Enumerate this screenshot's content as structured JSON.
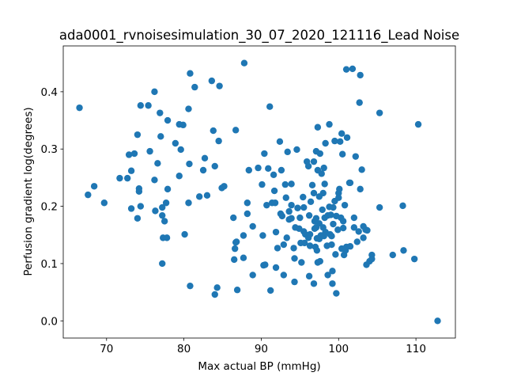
{
  "chart_data": {
    "type": "scatter",
    "title": "ada0001_rvnoisesimulation_30_07_2020_121116_Lead Noise",
    "x_label": "Max actual BP (mmHg)",
    "y_label": "Perfusion gradient log(degrees)",
    "color": "#1f77b4",
    "xlim": [
      64.4,
      115.1
    ],
    "ylim": [
      -0.03,
      0.48
    ],
    "xticks": [
      70,
      80,
      90,
      100,
      110
    ],
    "yticks": [
      {
        "value": 0,
        "label": "0.0"
      },
      0.1,
      0.2,
      0.3,
      0.4
    ],
    "x": [
      66.5,
      67.6,
      68.4,
      69.7,
      71.7,
      72.7,
      72.9,
      73.6,
      73.2,
      73.2,
      74.0,
      74.4,
      74.2,
      74.2,
      74.4,
      74.0,
      75.4,
      75.6,
      76.2,
      76.2,
      76.3,
      76.6,
      76.9,
      77.0,
      77.2,
      77.2,
      77.3,
      77.2,
      77.5,
      77.7,
      77.9,
      77.8,
      77.9,
      78.9,
      79.4,
      79.6,
      79.4,
      79.9,
      80.1,
      80.6,
      80.7,
      80.6,
      80.8,
      81.4,
      80.8,
      82.0,
      82.5,
      82.7,
      83.0,
      83.6,
      83.8,
      84.0,
      84.6,
      84.5,
      84.9,
      85.2,
      84.3,
      84.0,
      86.4,
      86.6,
      86.7,
      86.5,
      86.8,
      86.7,
      86.9,
      87.8,
      87.7,
      87.7,
      88.2,
      88.4,
      88.2,
      88.9,
      88.9,
      89.6,
      90.4,
      90.1,
      90.2,
      90.3,
      90.5,
      90.7,
      90.9,
      91.1,
      91.2,
      91.4,
      91.6,
      91.7,
      91.8,
      91.9,
      91.9,
      92.1,
      92.4,
      92.6,
      92.5,
      92.7,
      92.9,
      92.9,
      93.1,
      93.2,
      93.3,
      93.4,
      93.6,
      93.6,
      93.9,
      93.9,
      93.9,
      94.2,
      94.3,
      94.4,
      94.3,
      94.6,
      94.7,
      94.9,
      95.0,
      95.1,
      95.2,
      95.4,
      95.5,
      95.5,
      95.6,
      95.7,
      95.9,
      96.1,
      96.1,
      96.2,
      96.2,
      96.3,
      96.4,
      96.3,
      96.6,
      96.8,
      96.8,
      96.9,
      96.9,
      96.8,
      97.0,
      97.1,
      97.1,
      97.1,
      97.2,
      97.2,
      97.3,
      97.3,
      97.3,
      97.5,
      97.5,
      97.5,
      97.6,
      97.6,
      97.7,
      97.8,
      97.9,
      98.0,
      98.0,
      98.1,
      98.1,
      98.2,
      98.2,
      98.3,
      98.3,
      98.5,
      98.6,
      98.6,
      98.8,
      98.8,
      98.9,
      99.0,
      99.1,
      99.1,
      99.2,
      99.2,
      99.3,
      99.3,
      99.5,
      99.5,
      99.6,
      99.7,
      99.7,
      99.9,
      100.0,
      100.0,
      100.1,
      100.2,
      100.3,
      100.4,
      100.4,
      100.5,
      100.6,
      100.6,
      100.7,
      100.8,
      100.9,
      101.0,
      101.0,
      101.1,
      101.4,
      101.5,
      101.5,
      101.8,
      102.0,
      102.0,
      102.2,
      102.4,
      102.6,
      102.7,
      102.8,
      102.8,
      103.0,
      103.2,
      103.2,
      103.5,
      103.6,
      103.7,
      104.0,
      104.3,
      104.3,
      105.3,
      105.3,
      107.0,
      108.3,
      108.4,
      109.8,
      110.3,
      112.8
    ],
    "y": [
      0.372,
      0.22,
      0.235,
      0.206,
      0.249,
      0.249,
      0.29,
      0.292,
      0.262,
      0.196,
      0.325,
      0.376,
      0.231,
      0.226,
      0.2,
      0.179,
      0.376,
      0.296,
      0.4,
      0.246,
      0.192,
      0.275,
      0.363,
      0.322,
      0.198,
      0.184,
      0.145,
      0.1,
      0.174,
      0.206,
      0.23,
      0.145,
      0.35,
      0.31,
      0.343,
      0.299,
      0.253,
      0.342,
      0.151,
      0.37,
      0.274,
      0.206,
      0.432,
      0.408,
      0.061,
      0.217,
      0.263,
      0.284,
      0.219,
      0.419,
      0.332,
      0.27,
      0.41,
      0.314,
      0.232,
      0.235,
      0.058,
      0.046,
      0.18,
      0.126,
      0.137,
      0.107,
      0.138,
      0.333,
      0.054,
      0.45,
      0.11,
      0.149,
      0.206,
      0.263,
      0.187,
      0.165,
      0.08,
      0.267,
      0.292,
      0.238,
      0.149,
      0.097,
      0.098,
      0.202,
      0.266,
      0.374,
      0.053,
      0.206,
      0.255,
      0.227,
      0.206,
      0.155,
      0.093,
      0.127,
      0.313,
      0.263,
      0.187,
      0.183,
      0.133,
      0.08,
      0.238,
      0.215,
      0.145,
      0.295,
      0.191,
      0.177,
      0.179,
      0.239,
      0.202,
      0.127,
      0.109,
      0.163,
      0.068,
      0.299,
      0.197,
      0.161,
      0.18,
      0.136,
      0.102,
      0.216,
      0.156,
      0.198,
      0.136,
      0.151,
      0.278,
      0.27,
      0.145,
      0.184,
      0.078,
      0.151,
      0.208,
      0.131,
      0.237,
      0.278,
      0.223,
      0.174,
      0.161,
      0.065,
      0.129,
      0.179,
      0.163,
      0.296,
      0.144,
      0.123,
      0.338,
      0.102,
      0.263,
      0.217,
      0.143,
      0.17,
      0.292,
      0.104,
      0.149,
      0.257,
      0.194,
      0.163,
      0.223,
      0.267,
      0.148,
      0.18,
      0.239,
      0.31,
      0.155,
      0.131,
      0.184,
      0.08,
      0.199,
      0.343,
      0.151,
      0.185,
      0.148,
      0.133,
      0.087,
      0.065,
      0.169,
      0.198,
      0.209,
      0.314,
      0.116,
      0.048,
      0.183,
      0.159,
      0.223,
      0.215,
      0.23,
      0.313,
      0.18,
      0.327,
      0.126,
      0.291,
      0.162,
      0.174,
      0.115,
      0.202,
      0.123,
      0.129,
      0.439,
      0.32,
      0.241,
      0.241,
      0.13,
      0.44,
      0.18,
      0.163,
      0.287,
      0.138,
      0.156,
      0.381,
      0.429,
      0.23,
      0.264,
      0.165,
      0.145,
      0.159,
      0.098,
      0.158,
      0.104,
      0.115,
      0.108,
      0.198,
      0.363,
      0.115,
      0.201,
      0.123,
      0.108,
      0.343,
      0.0
    ]
  }
}
